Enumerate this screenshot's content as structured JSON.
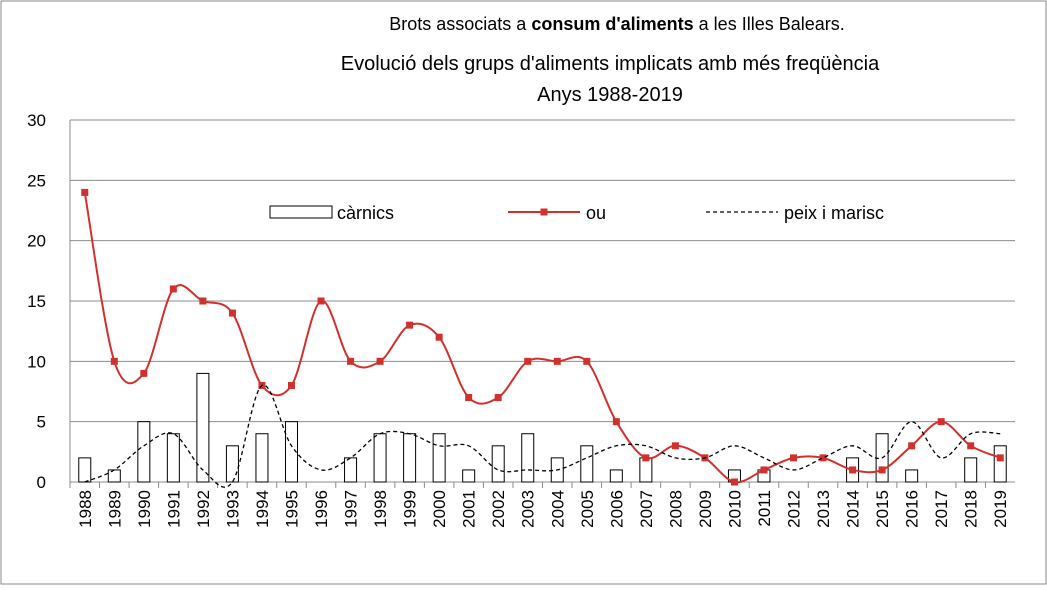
{
  "chart_data": {
    "type": "bar-line",
    "title": [
      "Brots associats a",
      "consum d'aliments",
      "a les Illes Balears."
    ],
    "subtitle": [
      "Evolució dels grups d'aliments implicats amb més freqüència",
      "Anys 1988-2019"
    ],
    "categories": [
      "1988",
      "1989",
      "1990",
      "1991",
      "1992",
      "1993",
      "1994",
      "1995",
      "1996",
      "1997",
      "1998",
      "1999",
      "2000",
      "2001",
      "2002",
      "2003",
      "2004",
      "2005",
      "2006",
      "2007",
      "2008",
      "2009",
      "2010",
      "2011",
      "2012",
      "2013",
      "2014",
      "2015",
      "2016",
      "2017",
      "2018",
      "2019"
    ],
    "series": [
      {
        "name": "càrnics",
        "type": "bar",
        "color": "#ffffff",
        "values": [
          2,
          1,
          5,
          4,
          9,
          3,
          4,
          5,
          0,
          2,
          4,
          4,
          4,
          1,
          3,
          4,
          2,
          3,
          1,
          2,
          0,
          0,
          1,
          1,
          0,
          0,
          2,
          4,
          1,
          0,
          2,
          3
        ]
      },
      {
        "name": "ou",
        "type": "line",
        "color": "#d0312d",
        "values": [
          24,
          10,
          9,
          16,
          15,
          14,
          8,
          8,
          15,
          10,
          10,
          13,
          12,
          7,
          7,
          10,
          10,
          10,
          5,
          2,
          3,
          2,
          0,
          1,
          2,
          2,
          1,
          1,
          3,
          5,
          3,
          2
        ]
      },
      {
        "name": "peix i marisc",
        "type": "dashed",
        "color": "#000000",
        "values": [
          0,
          1,
          3,
          4,
          1,
          0,
          8,
          3,
          1,
          2,
          4,
          4,
          3,
          3,
          1,
          1,
          1,
          2,
          3,
          3,
          2,
          2,
          3,
          2,
          1,
          2,
          3,
          2,
          5,
          2,
          4,
          4
        ]
      }
    ],
    "ylim": [
      0,
      30
    ],
    "yticks": [
      0,
      5,
      10,
      15,
      20,
      25,
      30
    ],
    "grid": true,
    "legend": "top"
  }
}
